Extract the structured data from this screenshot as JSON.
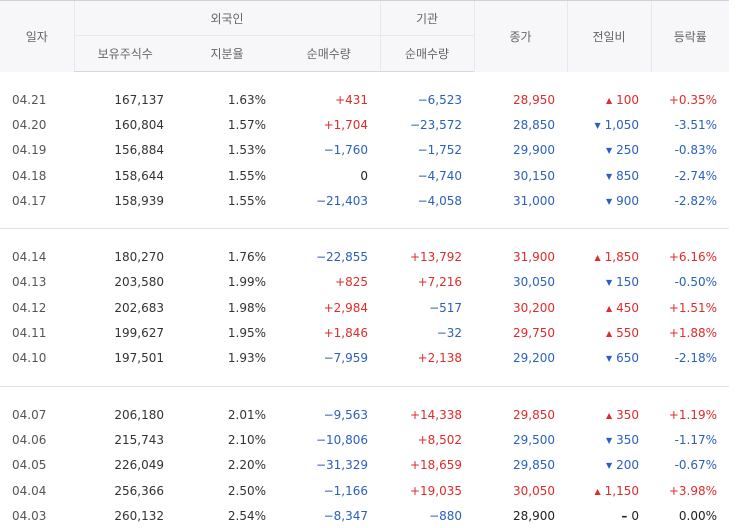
{
  "headers": {
    "date": "일자",
    "foreign": "외국인",
    "institution": "기관",
    "close": "종가",
    "change": "전일비",
    "rate": "등락률",
    "holdings": "보유주식수",
    "share": "지분율",
    "foreign_net": "순매수량",
    "inst_net": "순매수량"
  },
  "colors": {
    "up": "#e02b2b",
    "down": "#2b5fbd"
  },
  "icons": {
    "up": "triangle-up-icon",
    "down": "triangle-down-icon",
    "flat": "dash-icon"
  },
  "groups": [
    [
      {
        "date": "04.21",
        "holdings": "167,137",
        "share": "1.63%",
        "foreign_net": "+431",
        "inst_net": "−6,523",
        "close": "28,950",
        "change": "100",
        "change_dir": "up",
        "rate": "+0.35%"
      },
      {
        "date": "04.20",
        "holdings": "160,804",
        "share": "1.57%",
        "foreign_net": "+1,704",
        "inst_net": "−23,572",
        "close": "28,850",
        "change": "1,050",
        "change_dir": "down",
        "rate": "-3.51%"
      },
      {
        "date": "04.19",
        "holdings": "156,884",
        "share": "1.53%",
        "foreign_net": "−1,760",
        "inst_net": "−1,752",
        "close": "29,900",
        "change": "250",
        "change_dir": "down",
        "rate": "-0.83%"
      },
      {
        "date": "04.18",
        "holdings": "158,644",
        "share": "1.55%",
        "foreign_net": "0",
        "inst_net": "−4,740",
        "close": "30,150",
        "change": "850",
        "change_dir": "down",
        "rate": "-2.74%"
      },
      {
        "date": "04.17",
        "holdings": "158,939",
        "share": "1.55%",
        "foreign_net": "−21,403",
        "inst_net": "−4,058",
        "close": "31,000",
        "change": "900",
        "change_dir": "down",
        "rate": "-2.82%"
      }
    ],
    [
      {
        "date": "04.14",
        "holdings": "180,270",
        "share": "1.76%",
        "foreign_net": "−22,855",
        "inst_net": "+13,792",
        "close": "31,900",
        "change": "1,850",
        "change_dir": "up",
        "rate": "+6.16%"
      },
      {
        "date": "04.13",
        "holdings": "203,580",
        "share": "1.99%",
        "foreign_net": "+825",
        "inst_net": "+7,216",
        "close": "30,050",
        "change": "150",
        "change_dir": "down",
        "rate": "-0.50%"
      },
      {
        "date": "04.12",
        "holdings": "202,683",
        "share": "1.98%",
        "foreign_net": "+2,984",
        "inst_net": "−517",
        "close": "30,200",
        "change": "450",
        "change_dir": "up",
        "rate": "+1.51%"
      },
      {
        "date": "04.11",
        "holdings": "199,627",
        "share": "1.95%",
        "foreign_net": "+1,846",
        "inst_net": "−32",
        "close": "29,750",
        "change": "550",
        "change_dir": "up",
        "rate": "+1.88%"
      },
      {
        "date": "04.10",
        "holdings": "197,501",
        "share": "1.93%",
        "foreign_net": "−7,959",
        "inst_net": "+2,138",
        "close": "29,200",
        "change": "650",
        "change_dir": "down",
        "rate": "-2.18%"
      }
    ],
    [
      {
        "date": "04.07",
        "holdings": "206,180",
        "share": "2.01%",
        "foreign_net": "−9,563",
        "inst_net": "+14,338",
        "close": "29,850",
        "change": "350",
        "change_dir": "up",
        "rate": "+1.19%"
      },
      {
        "date": "04.06",
        "holdings": "215,743",
        "share": "2.10%",
        "foreign_net": "−10,806",
        "inst_net": "+8,502",
        "close": "29,500",
        "change": "350",
        "change_dir": "down",
        "rate": "-1.17%"
      },
      {
        "date": "04.05",
        "holdings": "226,049",
        "share": "2.20%",
        "foreign_net": "−31,329",
        "inst_net": "+18,659",
        "close": "29,850",
        "change": "200",
        "change_dir": "down",
        "rate": "-0.67%"
      },
      {
        "date": "04.04",
        "holdings": "256,366",
        "share": "2.50%",
        "foreign_net": "−1,166",
        "inst_net": "+19,035",
        "close": "30,050",
        "change": "1,150",
        "change_dir": "up",
        "rate": "+3.98%"
      },
      {
        "date": "04.03",
        "holdings": "260,132",
        "share": "2.54%",
        "foreign_net": "−8,347",
        "inst_net": "−880",
        "close": "28,900",
        "change": "0",
        "change_dir": "flat",
        "rate": "0.00%"
      }
    ]
  ]
}
